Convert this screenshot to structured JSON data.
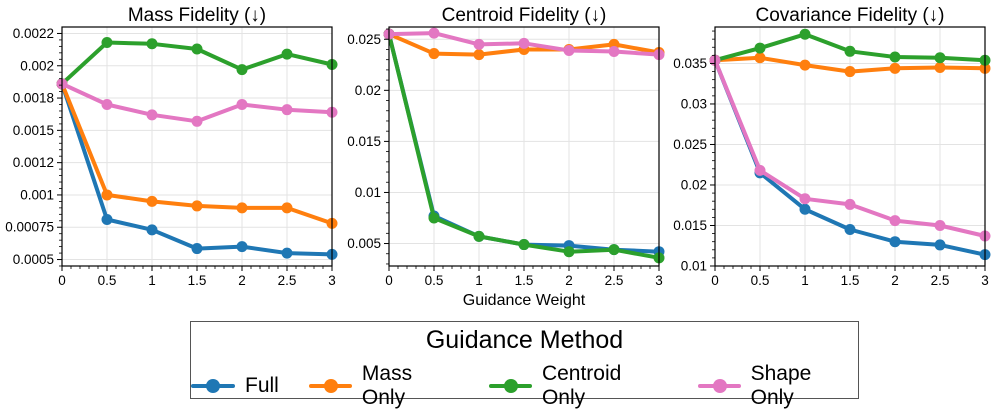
{
  "chart_data": [
    {
      "type": "line",
      "title": "Mass Fidelity (↓)",
      "xlabel": "",
      "ylabel": "",
      "x": [
        0,
        0.5,
        1,
        1.5,
        2,
        2.5,
        3
      ],
      "xlim": [
        0,
        3
      ],
      "ylim": [
        0.00045,
        0.0023
      ],
      "xticks": [
        0,
        0.5,
        1,
        1.5,
        2,
        2.5,
        3
      ],
      "xtick_labels": [
        "0",
        "0.5",
        "1",
        "1.5",
        "2",
        "2.5",
        "3"
      ],
      "yticks": [
        0.0005,
        0.00075,
        0.001,
        0.00125,
        0.0015,
        0.00175,
        0.002,
        0.00225
      ],
      "ytick_labels": [
        "0.0005",
        "0.00075",
        "0.001",
        "0.0012",
        "0.0015",
        "0.0018",
        "0.002",
        "0.0022"
      ],
      "series": [
        {
          "name": "Full",
          "values": [
            0.00186,
            0.00081,
            0.00073,
            0.000585,
            0.0006,
            0.00055,
            0.00054
          ]
        },
        {
          "name": "Mass Only",
          "values": [
            0.00186,
            0.001,
            0.00095,
            0.000915,
            0.0009,
            0.0009,
            0.00078
          ]
        },
        {
          "name": "Centroid Only",
          "values": [
            0.00186,
            0.00218,
            0.00217,
            0.00213,
            0.00197,
            0.00209,
            0.00201
          ]
        },
        {
          "name": "Shape Only",
          "values": [
            0.00186,
            0.0017,
            0.00162,
            0.00157,
            0.0017,
            0.00166,
            0.00164
          ]
        }
      ]
    },
    {
      "type": "line",
      "title": "Centroid Fidelity (↓)",
      "xlabel": "Guidance Weight",
      "ylabel": "",
      "x": [
        0,
        0.5,
        1,
        1.5,
        2,
        2.5,
        3
      ],
      "xlim": [
        0,
        3
      ],
      "ylim": [
        0.0028,
        0.0262
      ],
      "xticks": [
        0,
        0.5,
        1,
        1.5,
        2,
        2.5,
        3
      ],
      "xtick_labels": [
        "0",
        "0.5",
        "1",
        "1.5",
        "2",
        "2.5",
        "3"
      ],
      "yticks": [
        0.005,
        0.01,
        0.015,
        0.02,
        0.025
      ],
      "ytick_labels": [
        "0.005",
        "0.01",
        "0.015",
        "0.02",
        "0.025"
      ],
      "series": [
        {
          "name": "Full",
          "values": [
            0.0255,
            0.0077,
            0.0057,
            0.0049,
            0.0048,
            0.0044,
            0.0042
          ]
        },
        {
          "name": "Mass Only",
          "values": [
            0.0255,
            0.0236,
            0.0235,
            0.024,
            0.024,
            0.0245,
            0.0237
          ]
        },
        {
          "name": "Centroid Only",
          "values": [
            0.0255,
            0.0075,
            0.0057,
            0.0049,
            0.0042,
            0.0044,
            0.0036
          ]
        },
        {
          "name": "Shape Only",
          "values": [
            0.0255,
            0.0256,
            0.0245,
            0.0246,
            0.0239,
            0.0238,
            0.0235
          ]
        }
      ]
    },
    {
      "type": "line",
      "title": "Covariance Fidelity (↓)",
      "xlabel": "",
      "ylabel": "",
      "x": [
        0,
        0.5,
        1,
        1.5,
        2,
        2.5,
        3
      ],
      "xlim": [
        0,
        3
      ],
      "ylim": [
        0.01,
        0.0395
      ],
      "xticks": [
        0,
        0.5,
        1,
        1.5,
        2,
        2.5,
        3
      ],
      "xtick_labels": [
        "0",
        "0.5",
        "1",
        "1.5",
        "2",
        "2.5",
        "3"
      ],
      "yticks": [
        0.01,
        0.015,
        0.02,
        0.025,
        0.03,
        0.035
      ],
      "ytick_labels": [
        "0.01",
        "0.015",
        "0.02",
        "0.025",
        "0.03",
        "0.035"
      ],
      "series": [
        {
          "name": "Full",
          "values": [
            0.0354,
            0.0215,
            0.017,
            0.0145,
            0.013,
            0.0126,
            0.0114
          ]
        },
        {
          "name": "Mass Only",
          "values": [
            0.0354,
            0.0357,
            0.0348,
            0.034,
            0.0344,
            0.0345,
            0.0344
          ]
        },
        {
          "name": "Centroid Only",
          "values": [
            0.0354,
            0.0369,
            0.0386,
            0.0365,
            0.0358,
            0.0357,
            0.0354
          ]
        },
        {
          "name": "Shape Only",
          "values": [
            0.0354,
            0.0218,
            0.0183,
            0.0176,
            0.0156,
            0.015,
            0.0137
          ]
        }
      ]
    }
  ],
  "series_colors": {
    "Full": "#1f77b4",
    "Mass Only": "#ff7f0e",
    "Centroid Only": "#2ca02c",
    "Shape Only": "#e377c2"
  },
  "legend": {
    "title": "Guidance Method",
    "entries": [
      "Full",
      "Mass Only",
      "Centroid Only",
      "Shape Only"
    ]
  }
}
